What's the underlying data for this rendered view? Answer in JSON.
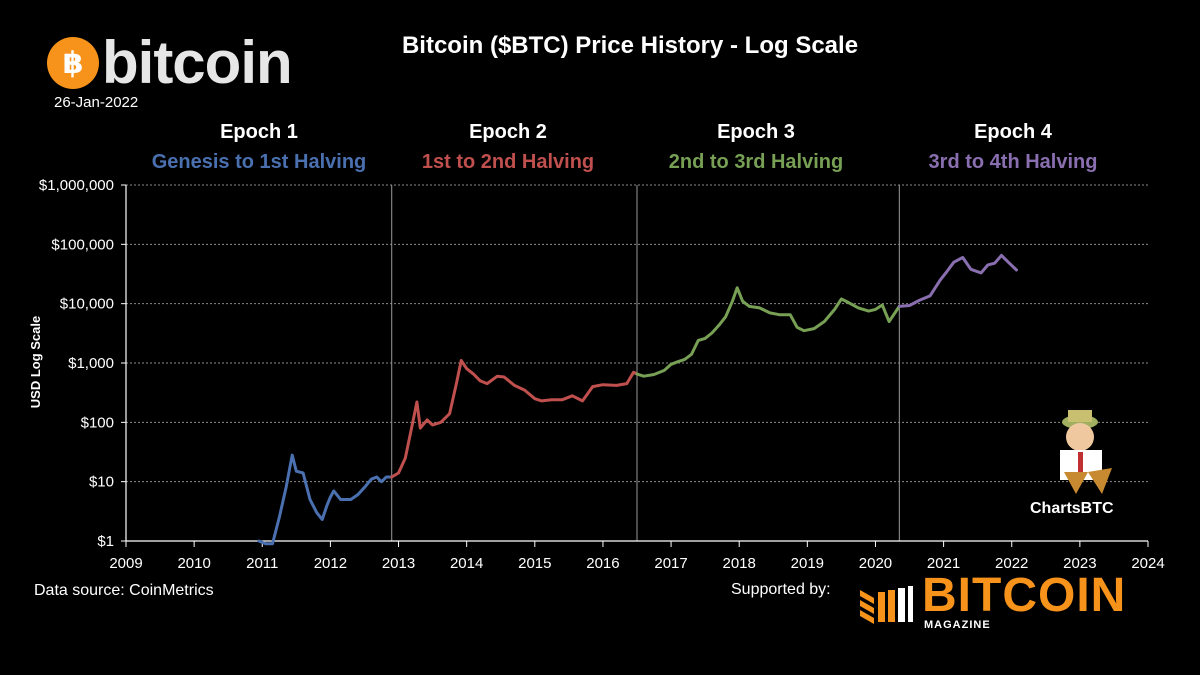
{
  "header": {
    "brand_word": "bitcoin",
    "brand_symbol": "฿",
    "date": "26-Jan-2022",
    "title": "Bitcoin ($BTC) Price History - Log Scale"
  },
  "epochs": [
    {
      "title": "Epoch 1",
      "subtitle": "Genesis to 1st Halving",
      "color": "#4a70b0"
    },
    {
      "title": "Epoch 2",
      "subtitle": "1st  to 2nd Halving",
      "color": "#c0504d"
    },
    {
      "title": "Epoch 3",
      "subtitle": "2nd to 3rd Halving",
      "color": "#77a055"
    },
    {
      "title": "Epoch 4",
      "subtitle": "3rd to 4th Halving",
      "color": "#8a6fb0"
    }
  ],
  "chart_data": {
    "type": "line",
    "title": "Bitcoin ($BTC) Price History - Log Scale",
    "ylabel": "USD Log Scale",
    "xlabel": "",
    "y_scale": "log",
    "ylim": [
      1,
      1000000
    ],
    "xlim": [
      2009,
      2024
    ],
    "x_ticks": [
      "2009",
      "2010",
      "2011",
      "2012",
      "2013",
      "2014",
      "2015",
      "2016",
      "2017",
      "2018",
      "2019",
      "2020",
      "2021",
      "2022",
      "2023",
      "2024"
    ],
    "y_ticks": [
      {
        "value": 1,
        "label": "$1"
      },
      {
        "value": 10,
        "label": "$10"
      },
      {
        "value": 100,
        "label": "$100"
      },
      {
        "value": 1000,
        "label": "$1,000"
      },
      {
        "value": 10000,
        "label": "$10,000"
      },
      {
        "value": 100000,
        "label": "$100,000"
      },
      {
        "value": 1000000,
        "label": "$1,000,000"
      }
    ],
    "halvings": [
      2012.9,
      2016.5,
      2020.35
    ],
    "grid": true,
    "series": [
      {
        "color": "#4a70b0",
        "points": [
          [
            2010.95,
            1.0
          ],
          [
            2011.05,
            0.9
          ],
          [
            2011.15,
            0.9
          ],
          [
            2011.25,
            2.5
          ],
          [
            2011.35,
            8
          ],
          [
            2011.44,
            28
          ],
          [
            2011.5,
            15
          ],
          [
            2011.6,
            14
          ],
          [
            2011.7,
            5
          ],
          [
            2011.8,
            3
          ],
          [
            2011.88,
            2.3
          ],
          [
            2011.95,
            4
          ],
          [
            2012.0,
            5.5
          ],
          [
            2012.05,
            7
          ],
          [
            2012.15,
            5
          ],
          [
            2012.3,
            5
          ],
          [
            2012.4,
            6
          ],
          [
            2012.5,
            8
          ],
          [
            2012.6,
            11
          ],
          [
            2012.68,
            12
          ],
          [
            2012.75,
            10
          ],
          [
            2012.82,
            12
          ],
          [
            2012.9,
            12
          ]
        ]
      },
      {
        "color": "#c0504d",
        "points": [
          [
            2012.9,
            12
          ],
          [
            2013.0,
            14
          ],
          [
            2013.1,
            25
          ],
          [
            2013.2,
            90
          ],
          [
            2013.27,
            220
          ],
          [
            2013.32,
            80
          ],
          [
            2013.42,
            110
          ],
          [
            2013.5,
            90
          ],
          [
            2013.62,
            100
          ],
          [
            2013.75,
            140
          ],
          [
            2013.85,
            450
          ],
          [
            2013.92,
            1100
          ],
          [
            2014.0,
            800
          ],
          [
            2014.1,
            650
          ],
          [
            2014.2,
            500
          ],
          [
            2014.3,
            450
          ],
          [
            2014.45,
            600
          ],
          [
            2014.55,
            580
          ],
          [
            2014.7,
            420
          ],
          [
            2014.85,
            350
          ],
          [
            2015.0,
            250
          ],
          [
            2015.1,
            230
          ],
          [
            2015.25,
            240
          ],
          [
            2015.4,
            240
          ],
          [
            2015.55,
            280
          ],
          [
            2015.7,
            230
          ],
          [
            2015.85,
            400
          ],
          [
            2016.0,
            430
          ],
          [
            2016.2,
            420
          ],
          [
            2016.35,
            450
          ],
          [
            2016.45,
            700
          ],
          [
            2016.5,
            650
          ]
        ]
      },
      {
        "color": "#77a055",
        "points": [
          [
            2016.5,
            650
          ],
          [
            2016.6,
            600
          ],
          [
            2016.75,
            640
          ],
          [
            2016.9,
            750
          ],
          [
            2017.0,
            950
          ],
          [
            2017.1,
            1050
          ],
          [
            2017.2,
            1150
          ],
          [
            2017.3,
            1400
          ],
          [
            2017.4,
            2400
          ],
          [
            2017.5,
            2600
          ],
          [
            2017.6,
            3200
          ],
          [
            2017.7,
            4300
          ],
          [
            2017.8,
            6000
          ],
          [
            2017.9,
            11000
          ],
          [
            2017.97,
            18500
          ],
          [
            2018.05,
            11000
          ],
          [
            2018.15,
            9000
          ],
          [
            2018.3,
            8500
          ],
          [
            2018.45,
            7000
          ],
          [
            2018.6,
            6500
          ],
          [
            2018.75,
            6500
          ],
          [
            2018.85,
            4000
          ],
          [
            2018.95,
            3500
          ],
          [
            2019.1,
            3800
          ],
          [
            2019.25,
            5000
          ],
          [
            2019.4,
            8000
          ],
          [
            2019.5,
            12000
          ],
          [
            2019.6,
            10500
          ],
          [
            2019.75,
            8500
          ],
          [
            2019.9,
            7500
          ],
          [
            2020.0,
            8000
          ],
          [
            2020.1,
            9500
          ],
          [
            2020.2,
            5000
          ],
          [
            2020.35,
            9000
          ]
        ]
      },
      {
        "color": "#8a6fb0",
        "points": [
          [
            2020.35,
            9000
          ],
          [
            2020.5,
            9300
          ],
          [
            2020.65,
            11500
          ],
          [
            2020.8,
            13500
          ],
          [
            2020.95,
            25000
          ],
          [
            2021.05,
            35000
          ],
          [
            2021.15,
            50000
          ],
          [
            2021.28,
            60000
          ],
          [
            2021.4,
            38000
          ],
          [
            2021.55,
            33000
          ],
          [
            2021.65,
            45000
          ],
          [
            2021.75,
            48000
          ],
          [
            2021.85,
            65000
          ],
          [
            2021.95,
            50000
          ],
          [
            2022.07,
            37000
          ]
        ]
      }
    ]
  },
  "footer": {
    "data_source": "Data source: CoinMetrics",
    "supported_by": "Supported by:",
    "magazine_word": "BITCOIN",
    "magazine_sub": "MAGAZINE",
    "charts_brand": "ChartsBTC"
  },
  "colors": {
    "background": "#000000",
    "text": "#ffffff",
    "grid": "#8a8a8a",
    "bitcoin_orange": "#f7931a",
    "magazine_orange": "#f7931a"
  }
}
